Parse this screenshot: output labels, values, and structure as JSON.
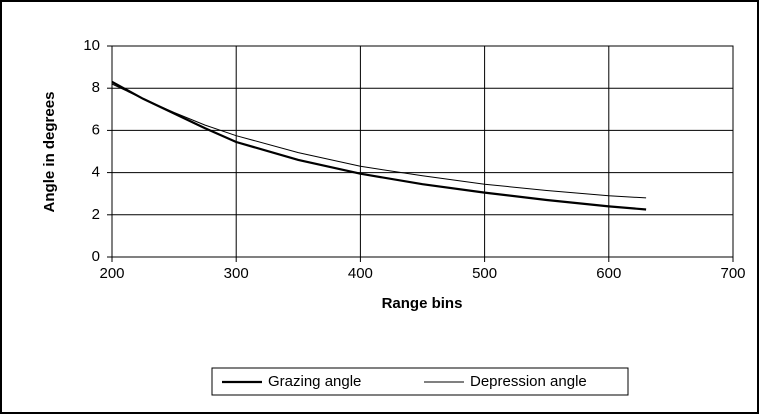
{
  "chart_data": {
    "type": "line",
    "xlabel": "Range bins",
    "ylabel": "Angle in degrees",
    "xlim": [
      200,
      700
    ],
    "xticks": [
      200,
      300,
      400,
      500,
      600,
      700
    ],
    "ylim": [
      0,
      10
    ],
    "yticks": [
      0,
      2,
      4,
      6,
      8,
      10
    ],
    "grid": true,
    "legend": "bottom",
    "series": [
      {
        "name": "Grazing angle",
        "color": "#000000",
        "x": [
          200,
          225,
          250,
          275,
          300,
          350,
          400,
          450,
          500,
          550,
          600,
          630
        ],
        "values": [
          8.3,
          7.5,
          6.8,
          6.1,
          5.45,
          4.6,
          3.95,
          3.45,
          3.05,
          2.7,
          2.4,
          2.25
        ]
      },
      {
        "name": "Depression angle",
        "color": "#000000",
        "x": [
          200,
          225,
          250,
          275,
          300,
          350,
          400,
          450,
          500,
          550,
          600,
          630
        ],
        "values": [
          8.2,
          7.5,
          6.85,
          6.25,
          5.75,
          4.95,
          4.3,
          3.85,
          3.45,
          3.15,
          2.9,
          2.8
        ]
      }
    ]
  }
}
